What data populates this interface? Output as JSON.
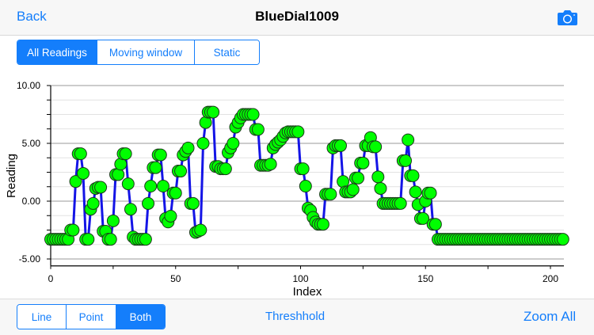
{
  "navbar": {
    "back_label": "Back",
    "title": "BlueDial1009",
    "camera_icon": "camera-icon"
  },
  "mode_segment": {
    "items": [
      "All Readings",
      "Moving window",
      "Static"
    ],
    "selected": "All Readings"
  },
  "style_segment": {
    "items": [
      "Line",
      "Point",
      "Both"
    ],
    "selected": "Both"
  },
  "toolbar": {
    "threshold_label": "Threshhold",
    "zoom_all_label": "Zoom All"
  },
  "colors": {
    "accent": "#147efb",
    "line": "#1414e6",
    "point": "#00ff00"
  },
  "chart_data": {
    "type": "line",
    "xlabel": "Index",
    "ylabel": "Reading",
    "xlim": [
      0,
      205
    ],
    "ylim": [
      -5.6,
      10
    ],
    "x_ticks": [
      "0",
      "50",
      "100",
      "150",
      "200"
    ],
    "y_ticks": [
      "10.00",
      "5.00",
      "0.00",
      "-5.00"
    ],
    "grid": true,
    "markers": true,
    "values": [
      -3.3,
      -3.3,
      -3.3,
      -3.3,
      -3.3,
      -3.3,
      -3.3,
      -3.3,
      -2.5,
      -2.5,
      1.7,
      4.1,
      4.1,
      2.4,
      -3.3,
      -3.3,
      -0.7,
      -0.2,
      1.1,
      1.2,
      1.2,
      -2.6,
      -2.6,
      -3.3,
      -3.3,
      -1.7,
      2.3,
      2.3,
      3.2,
      4.1,
      4.1,
      1.5,
      -0.7,
      -3.1,
      -3.3,
      -3.3,
      -3.3,
      -3.3,
      -3.3,
      -0.2,
      1.3,
      2.9,
      2.9,
      4.0,
      4.0,
      1.3,
      -1.5,
      -1.8,
      -1.3,
      0.7,
      0.7,
      2.6,
      2.6,
      4.0,
      4.3,
      4.6,
      -0.2,
      -0.2,
      -2.7,
      -2.6,
      -2.5,
      5.0,
      6.8,
      7.7,
      7.7,
      7.7,
      3.0,
      3.0,
      2.8,
      2.8,
      2.8,
      4.2,
      4.6,
      5.0,
      6.4,
      6.8,
      7.2,
      7.5,
      7.5,
      7.5,
      7.5,
      7.5,
      6.2,
      6.2,
      3.1,
      3.1,
      3.1,
      3.1,
      3.2,
      4.6,
      4.9,
      5.1,
      5.3,
      5.6,
      5.9,
      6.0,
      6.0,
      6.0,
      6.0,
      6.0,
      2.8,
      2.8,
      1.3,
      -0.6,
      -0.8,
      -1.4,
      -1.8,
      -2.0,
      -2.0,
      -2.0,
      0.6,
      0.6,
      0.6,
      4.6,
      4.8,
      4.8,
      4.8,
      1.7,
      0.8,
      0.8,
      0.8,
      1.0,
      2.0,
      2.0,
      3.3,
      3.3,
      4.8,
      4.8,
      5.5,
      4.7,
      4.7,
      2.1,
      1.1,
      -0.2,
      -0.2,
      -0.2,
      -0.2,
      -0.2,
      -0.2,
      -0.2,
      -0.2,
      3.5,
      3.5,
      5.3,
      2.2,
      2.2,
      0.8,
      -0.3,
      -1.5,
      -1.5,
      0.0,
      0.7,
      0.7,
      -2.0,
      -2.0,
      -3.3,
      -3.3,
      -3.3,
      -3.3,
      -3.3,
      -3.3,
      -3.3,
      -3.3,
      -3.3,
      -3.3,
      -3.3,
      -3.3,
      -3.3,
      -3.3,
      -3.3,
      -3.3,
      -3.3,
      -3.3,
      -3.3,
      -3.3,
      -3.3,
      -3.3,
      -3.3,
      -3.3,
      -3.3,
      -3.3,
      -3.3,
      -3.3,
      -3.3,
      -3.3,
      -3.3,
      -3.3,
      -3.3,
      -3.3,
      -3.3,
      -3.3,
      -3.3,
      -3.3,
      -3.3,
      -3.3,
      -3.3,
      -3.3,
      -3.3,
      -3.3,
      -3.3,
      -3.3,
      -3.3,
      -3.3,
      -3.3,
      -3.3,
      -3.3
    ]
  }
}
